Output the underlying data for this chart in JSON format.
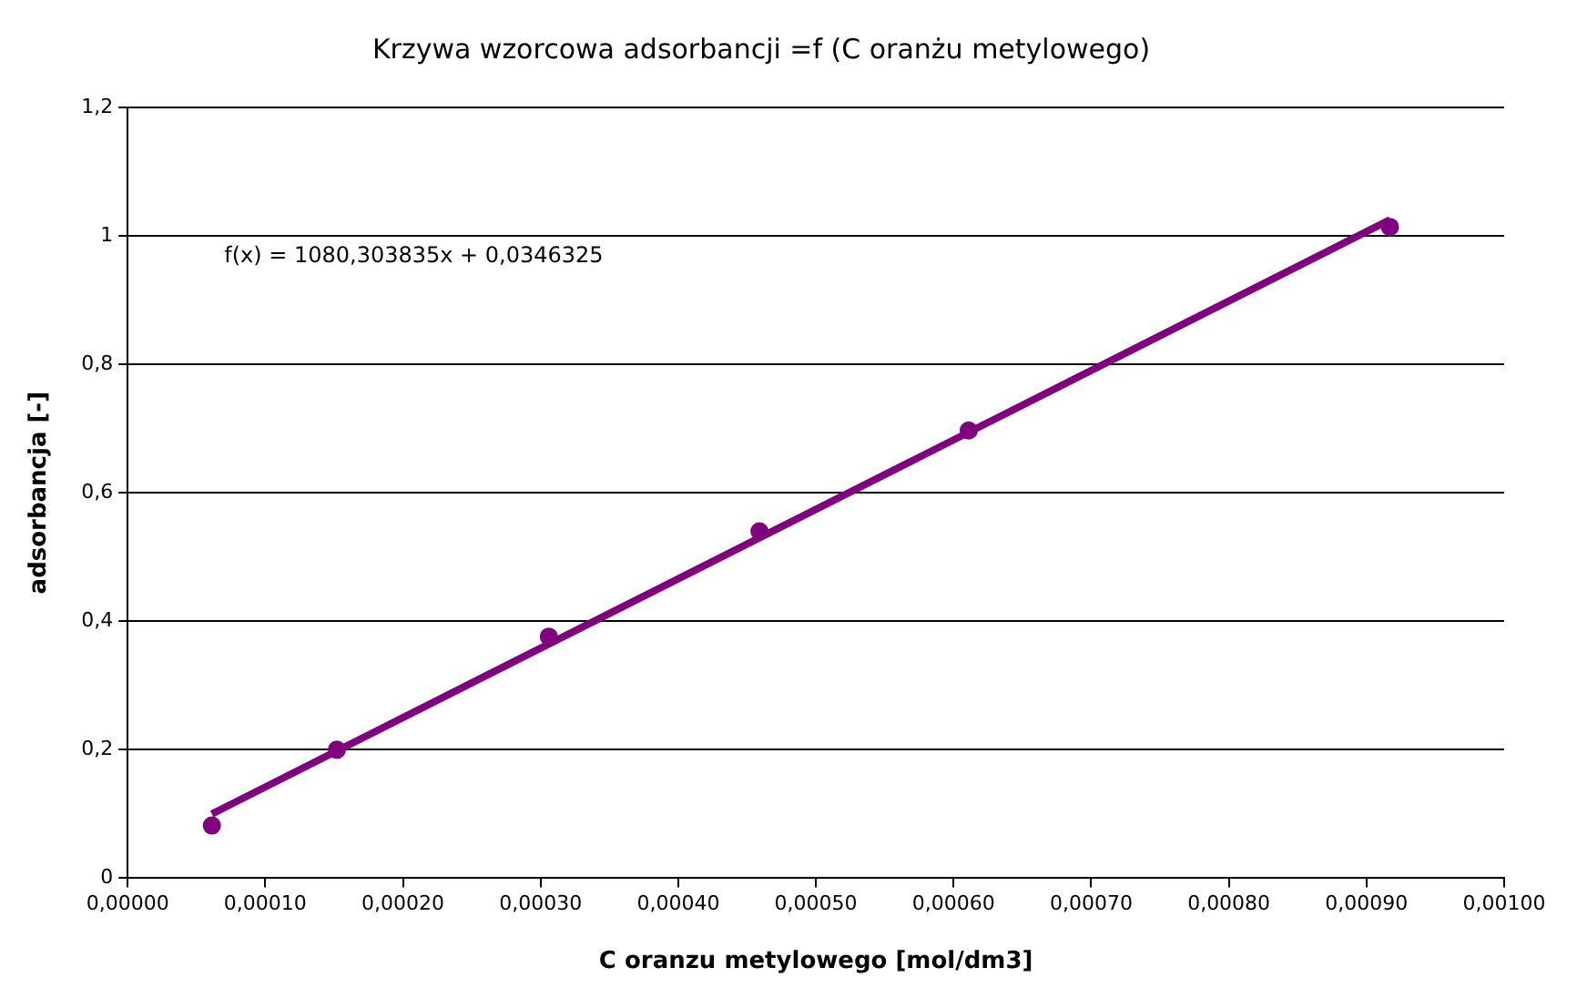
{
  "chart_data": {
    "type": "scatter",
    "title": "Krzywa wzorcowa adsorbancji =f (C oranżu metylowego)",
    "xlabel": "C oranzu metylowego [mol/dm3]",
    "ylabel": "adsorbancja [-]",
    "x": [
      6.12e-05,
      0.000152,
      0.000306,
      0.000459,
      0.000611,
      0.000917
    ],
    "series": [
      {
        "color": "#800080",
        "marker": "circle",
        "values": [
          0.082,
          0.2,
          0.376,
          0.54,
          0.697,
          1.014
        ]
      },
      {
        "type": "line",
        "color": "#800080",
        "marker": "none",
        "x": [
          6.12e-05,
          0.000917
        ],
        "values": [
          0.1,
          1.025
        ]
      }
    ],
    "annotations": [
      "f(x) = 1080,303835x + 0,0346325"
    ],
    "xlim": [
      0,
      0.001
    ],
    "xticks": [
      {
        "value": 0,
        "label": "0,00000"
      },
      {
        "value": 0.0001,
        "label": "0,00010"
      },
      {
        "value": 0.0002,
        "label": "0,00020"
      },
      {
        "value": 0.0003,
        "label": "0,00030"
      },
      {
        "value": 0.0004,
        "label": "0,00040"
      },
      {
        "value": 0.0005,
        "label": "0,00050"
      },
      {
        "value": 0.0006,
        "label": "0,00060"
      },
      {
        "value": 0.0007,
        "label": "0,00070"
      },
      {
        "value": 0.0008,
        "label": "0,00080"
      },
      {
        "value": 0.0009,
        "label": "0,00090"
      },
      {
        "value": 0.001,
        "label": "0,00100"
      }
    ],
    "ylim": [
      0,
      1.2
    ],
    "yticks": [
      0,
      {
        "value": 0.2,
        "label": "0,2"
      },
      {
        "value": 0.4,
        "label": "0,4"
      },
      {
        "value": 0.6,
        "label": "0,6"
      },
      {
        "value": 0.8,
        "label": "0,8"
      },
      1,
      {
        "value": 1.2,
        "label": "1,2"
      }
    ],
    "grid": "y",
    "legend": false
  }
}
